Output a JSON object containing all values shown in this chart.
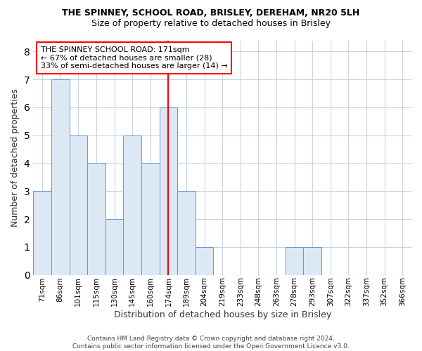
{
  "title1": "THE SPINNEY, SCHOOL ROAD, BRISLEY, DEREHAM, NR20 5LH",
  "title2": "Size of property relative to detached houses in Brisley",
  "xlabel": "Distribution of detached houses by size in Brisley",
  "ylabel": "Number of detached properties",
  "categories": [
    "71sqm",
    "86sqm",
    "101sqm",
    "115sqm",
    "130sqm",
    "145sqm",
    "160sqm",
    "174sqm",
    "189sqm",
    "204sqm",
    "219sqm",
    "233sqm",
    "248sqm",
    "263sqm",
    "278sqm",
    "293sqm",
    "307sqm",
    "322sqm",
    "337sqm",
    "352sqm",
    "366sqm"
  ],
  "values": [
    3,
    7,
    5,
    4,
    2,
    5,
    4,
    6,
    3,
    1,
    0,
    0,
    0,
    0,
    1,
    1,
    0,
    0,
    0,
    0,
    0
  ],
  "bar_color": "#dce8f4",
  "bar_edge_color": "#6699cc",
  "reference_line_x": 7,
  "reference_line_color": "red",
  "annotation_text": "THE SPINNEY SCHOOL ROAD: 171sqm\n← 67% of detached houses are smaller (28)\n33% of semi-detached houses are larger (14) →",
  "annotation_box_color": "white",
  "annotation_box_edge_color": "red",
  "ylim": [
    0,
    8.4
  ],
  "yticks": [
    0,
    1,
    2,
    3,
    4,
    5,
    6,
    7,
    8
  ],
  "footer_text": "Contains HM Land Registry data © Crown copyright and database right 2024.\nContains public sector information licensed under the Open Government Licence v3.0.",
  "background_color": "white",
  "plot_background_color": "white",
  "grid_color": "#c8d4e4"
}
